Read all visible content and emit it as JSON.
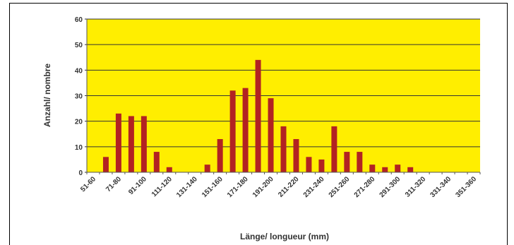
{
  "chart_data": {
    "type": "bar",
    "title": "",
    "xlabel": "Länge/ longueur (mm)",
    "ylabel": "Anzahl/ nombre",
    "ylim": [
      0,
      60
    ],
    "yticks": [
      0,
      10,
      20,
      30,
      40,
      50,
      60
    ],
    "grid": true,
    "colors": {
      "plot_background": "#ffee00",
      "bar": "#b22222",
      "grid": "#333333"
    },
    "category_labels": [
      "51-60",
      "71-80",
      "91-100",
      "111-120",
      "131-140",
      "151-160",
      "171-180",
      "191-200",
      "211-220",
      "231-240",
      "251-260",
      "271-280",
      "291-300",
      "311-320",
      "331-340",
      "351-360"
    ],
    "categories": [
      "51-60",
      "61-70",
      "71-80",
      "81-90",
      "91-100",
      "101-110",
      "111-120",
      "121-130",
      "131-140",
      "141-150",
      "151-160",
      "161-170",
      "171-180",
      "181-190",
      "191-200",
      "201-210",
      "211-220",
      "221-230",
      "231-240",
      "241-250",
      "251-260",
      "261-270",
      "271-280",
      "281-290",
      "291-300",
      "301-310",
      "311-320",
      "321-330",
      "331-340",
      "341-350",
      "351-360"
    ],
    "values": [
      0,
      6,
      23,
      22,
      22,
      8,
      2,
      0,
      0,
      3,
      13,
      32,
      33,
      44,
      29,
      18,
      13,
      6,
      5,
      18,
      8,
      8,
      3,
      2,
      3,
      2,
      0,
      0,
      0,
      0,
      0
    ]
  }
}
